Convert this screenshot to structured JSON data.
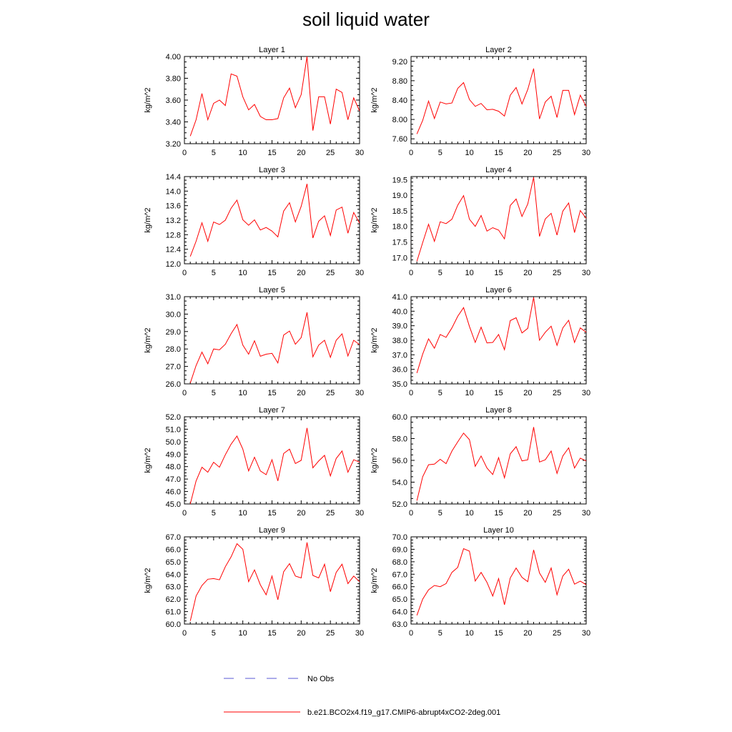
{
  "title": "soil liquid water",
  "legend": [
    {
      "label": "No Obs",
      "color": "#5a5ad6",
      "style": "dashed"
    },
    {
      "label": "b.e21.BCO2x4.f19_g17.CMIP6-abrupt4xCO2-2deg.001",
      "color": "#ff0000",
      "style": "solid"
    }
  ],
  "chart_data": [
    {
      "type": "line",
      "title": "Layer 1",
      "ylabel": "kg/m^2",
      "xlim": [
        0,
        30
      ],
      "ylim": [
        3.2,
        4.0
      ],
      "xticks": [
        0,
        5,
        10,
        15,
        20,
        25,
        30
      ],
      "yticks": [
        3.2,
        3.4,
        3.6,
        3.8,
        4.0
      ],
      "ytick_labels": [
        "3.20",
        "3.40",
        "3.60",
        "3.80",
        "4.00"
      ],
      "x": [
        1,
        2,
        3,
        4,
        5,
        6,
        7,
        8,
        9,
        10,
        11,
        12,
        13,
        14,
        15,
        16,
        17,
        18,
        19,
        20,
        21,
        22,
        23,
        24,
        25,
        26,
        27,
        28,
        29,
        30
      ],
      "series": [
        {
          "color": "#ff0000",
          "values": [
            3.27,
            3.42,
            3.66,
            3.42,
            3.57,
            3.6,
            3.55,
            3.84,
            3.82,
            3.63,
            3.51,
            3.56,
            3.45,
            3.42,
            3.42,
            3.43,
            3.62,
            3.71,
            3.53,
            3.65,
            4.0,
            3.32,
            3.63,
            3.63,
            3.38,
            3.7,
            3.67,
            3.42,
            3.62,
            3.5
          ]
        }
      ]
    },
    {
      "type": "line",
      "title": "Layer 2",
      "ylabel": "kg/m^2",
      "xlim": [
        0,
        30
      ],
      "ylim": [
        7.5,
        9.3
      ],
      "xticks": [
        0,
        5,
        10,
        15,
        20,
        25,
        30
      ],
      "yticks": [
        7.6,
        8.0,
        8.4,
        8.8,
        9.2
      ],
      "ytick_labels": [
        "7.60",
        "8.00",
        "8.40",
        "8.80",
        "9.20"
      ],
      "x": [
        1,
        2,
        3,
        4,
        5,
        6,
        7,
        8,
        9,
        10,
        11,
        12,
        13,
        14,
        15,
        16,
        17,
        18,
        19,
        20,
        21,
        22,
        23,
        24,
        25,
        26,
        27,
        28,
        29,
        30
      ],
      "series": [
        {
          "color": "#ff0000",
          "values": [
            7.7,
            7.98,
            8.38,
            8.02,
            8.36,
            8.32,
            8.34,
            8.64,
            8.76,
            8.41,
            8.27,
            8.33,
            8.2,
            8.21,
            8.17,
            8.07,
            8.5,
            8.66,
            8.32,
            8.62,
            9.05,
            8.01,
            8.36,
            8.48,
            8.04,
            8.6,
            8.6,
            8.1,
            8.5,
            8.27
          ]
        }
      ]
    },
    {
      "type": "line",
      "title": "Layer 3",
      "ylabel": "kg/m^2",
      "xlim": [
        0,
        30
      ],
      "ylim": [
        12.0,
        14.4
      ],
      "xticks": [
        0,
        5,
        10,
        15,
        20,
        25,
        30
      ],
      "yticks": [
        12.0,
        12.4,
        12.8,
        13.2,
        13.6,
        14.0,
        14.4
      ],
      "ytick_labels": [
        "12.0",
        "12.4",
        "12.8",
        "13.2",
        "13.6",
        "14.0",
        "14.4"
      ],
      "x": [
        1,
        2,
        3,
        4,
        5,
        6,
        7,
        8,
        9,
        10,
        11,
        12,
        13,
        14,
        15,
        16,
        17,
        18,
        19,
        20,
        21,
        22,
        23,
        24,
        25,
        26,
        27,
        28,
        29,
        30
      ],
      "series": [
        {
          "color": "#ff0000",
          "values": [
            12.2,
            12.62,
            13.13,
            12.62,
            13.15,
            13.08,
            13.2,
            13.53,
            13.75,
            13.21,
            13.06,
            13.21,
            12.93,
            13.0,
            12.9,
            12.74,
            13.45,
            13.68,
            13.15,
            13.58,
            14.2,
            12.71,
            13.17,
            13.32,
            12.78,
            13.48,
            13.56,
            12.84,
            13.41,
            13.12
          ]
        }
      ]
    },
    {
      "type": "line",
      "title": "Layer 4",
      "ylabel": "kg/m^2",
      "xlim": [
        0,
        30
      ],
      "ylim": [
        16.8,
        19.6
      ],
      "xticks": [
        0,
        5,
        10,
        15,
        20,
        25,
        30
      ],
      "yticks": [
        17.0,
        17.5,
        18.0,
        18.5,
        19.0,
        19.5
      ],
      "ytick_labels": [
        "17.0",
        "17.5",
        "18.0",
        "18.5",
        "19.0",
        "19.5"
      ],
      "x": [
        1,
        2,
        3,
        4,
        5,
        6,
        7,
        8,
        9,
        10,
        11,
        12,
        13,
        14,
        15,
        16,
        17,
        18,
        19,
        20,
        21,
        22,
        23,
        24,
        25,
        26,
        27,
        28,
        29,
        30
      ],
      "series": [
        {
          "color": "#ff0000",
          "values": [
            16.88,
            17.48,
            18.07,
            17.52,
            18.15,
            18.09,
            18.23,
            18.68,
            18.99,
            18.23,
            18.0,
            18.35,
            17.85,
            17.96,
            17.88,
            17.6,
            18.67,
            18.88,
            18.32,
            18.72,
            19.58,
            17.68,
            18.24,
            18.42,
            17.72,
            18.49,
            18.75,
            17.8,
            18.51,
            18.26
          ]
        }
      ]
    },
    {
      "type": "line",
      "title": "Layer 5",
      "ylabel": "kg/m^2",
      "xlim": [
        0,
        30
      ],
      "ylim": [
        26.0,
        31.0
      ],
      "xticks": [
        0,
        5,
        10,
        15,
        20,
        25,
        30
      ],
      "yticks": [
        26.0,
        27.0,
        28.0,
        29.0,
        30.0,
        31.0
      ],
      "ytick_labels": [
        "26.0",
        "27.0",
        "28.0",
        "29.0",
        "30.0",
        "31.0"
      ],
      "x": [
        1,
        2,
        3,
        4,
        5,
        6,
        7,
        8,
        9,
        10,
        11,
        12,
        13,
        14,
        15,
        16,
        17,
        18,
        19,
        20,
        21,
        22,
        23,
        24,
        25,
        26,
        27,
        28,
        29,
        30
      ],
      "series": [
        {
          "color": "#ff0000",
          "values": [
            26.05,
            27.05,
            27.82,
            27.15,
            28.0,
            27.95,
            28.27,
            28.88,
            29.4,
            28.22,
            27.7,
            28.47,
            27.58,
            27.7,
            27.75,
            27.2,
            28.8,
            29.03,
            28.27,
            28.65,
            30.1,
            27.55,
            28.22,
            28.5,
            27.52,
            28.5,
            28.87,
            27.6,
            28.5,
            28.25
          ]
        }
      ]
    },
    {
      "type": "line",
      "title": "Layer 6",
      "ylabel": "kg/m^2",
      "xlim": [
        0,
        30
      ],
      "ylim": [
        35.0,
        41.0
      ],
      "xticks": [
        0,
        5,
        10,
        15,
        20,
        25,
        30
      ],
      "yticks": [
        35.0,
        36.0,
        37.0,
        38.0,
        39.0,
        40.0,
        41.0
      ],
      "ytick_labels": [
        "35.0",
        "36.0",
        "37.0",
        "38.0",
        "39.0",
        "40.0",
        "41.0"
      ],
      "x": [
        1,
        2,
        3,
        4,
        5,
        6,
        7,
        8,
        9,
        10,
        11,
        12,
        13,
        14,
        15,
        16,
        17,
        18,
        19,
        20,
        21,
        22,
        23,
        24,
        25,
        26,
        27,
        28,
        29,
        30
      ],
      "series": [
        {
          "color": "#ff0000",
          "values": [
            35.75,
            37.05,
            38.1,
            37.45,
            38.4,
            38.2,
            38.85,
            39.65,
            40.25,
            38.95,
            37.85,
            38.9,
            37.82,
            37.85,
            38.4,
            37.35,
            39.35,
            39.55,
            38.5,
            38.82,
            40.95,
            38.0,
            38.55,
            38.97,
            37.65,
            38.85,
            39.37,
            37.85,
            38.85,
            38.55
          ]
        }
      ]
    },
    {
      "type": "line",
      "title": "Layer 7",
      "ylabel": "kg/m^2",
      "xlim": [
        0,
        30
      ],
      "ylim": [
        45.0,
        52.0
      ],
      "xticks": [
        0,
        5,
        10,
        15,
        20,
        25,
        30
      ],
      "yticks": [
        45.0,
        46.0,
        47.0,
        48.0,
        49.0,
        50.0,
        51.0,
        52.0
      ],
      "ytick_labels": [
        "45.0",
        "46.0",
        "47.0",
        "48.0",
        "49.0",
        "50.0",
        "51.0",
        "52.0"
      ],
      "x": [
        1,
        2,
        3,
        4,
        5,
        6,
        7,
        8,
        9,
        10,
        11,
        12,
        13,
        14,
        15,
        16,
        17,
        18,
        19,
        20,
        21,
        22,
        23,
        24,
        25,
        26,
        27,
        28,
        29,
        30
      ],
      "series": [
        {
          "color": "#ff0000",
          "values": [
            45.0,
            46.85,
            47.95,
            47.55,
            48.35,
            47.95,
            48.95,
            49.8,
            50.45,
            49.4,
            47.65,
            48.75,
            47.65,
            47.35,
            48.55,
            46.85,
            49.05,
            49.4,
            48.25,
            48.5,
            51.1,
            47.9,
            48.45,
            48.9,
            47.25,
            48.65,
            49.25,
            47.55,
            48.55,
            48.35
          ]
        }
      ]
    },
    {
      "type": "line",
      "title": "Layer 8",
      "ylabel": "kg/m^2",
      "xlim": [
        0,
        30
      ],
      "ylim": [
        52.0,
        60.0
      ],
      "xticks": [
        0,
        5,
        10,
        15,
        20,
        25,
        30
      ],
      "yticks": [
        52.0,
        54.0,
        56.0,
        58.0,
        60.0
      ],
      "ytick_labels": [
        "52.0",
        "54.0",
        "56.0",
        "58.0",
        "60.0"
      ],
      "x": [
        1,
        2,
        3,
        4,
        5,
        6,
        7,
        8,
        9,
        10,
        11,
        12,
        13,
        14,
        15,
        16,
        17,
        18,
        19,
        20,
        21,
        22,
        23,
        24,
        25,
        26,
        27,
        28,
        29,
        30
      ],
      "series": [
        {
          "color": "#ff0000",
          "values": [
            52.3,
            54.5,
            55.6,
            55.65,
            56.1,
            55.7,
            56.85,
            57.7,
            58.5,
            57.9,
            55.45,
            56.4,
            55.3,
            54.7,
            56.25,
            54.4,
            56.6,
            57.25,
            55.95,
            56.05,
            59.05,
            55.85,
            56.05,
            56.85,
            54.8,
            56.4,
            57.15,
            55.3,
            56.2,
            55.95
          ]
        }
      ]
    },
    {
      "type": "line",
      "title": "Layer 9",
      "ylabel": "kg/m^2",
      "xlim": [
        0,
        30
      ],
      "ylim": [
        60.0,
        67.0
      ],
      "xticks": [
        0,
        5,
        10,
        15,
        20,
        25,
        30
      ],
      "yticks": [
        60.0,
        61.0,
        62.0,
        63.0,
        64.0,
        65.0,
        66.0,
        67.0
      ],
      "ytick_labels": [
        "60.0",
        "61.0",
        "62.0",
        "63.0",
        "64.0",
        "65.0",
        "66.0",
        "67.0"
      ],
      "x": [
        1,
        2,
        3,
        4,
        5,
        6,
        7,
        8,
        9,
        10,
        11,
        12,
        13,
        14,
        15,
        16,
        17,
        18,
        19,
        20,
        21,
        22,
        23,
        24,
        25,
        26,
        27,
        28,
        29,
        30
      ],
      "series": [
        {
          "color": "#ff0000",
          "values": [
            60.25,
            62.25,
            63.1,
            63.6,
            63.65,
            63.55,
            64.6,
            65.4,
            66.45,
            66.0,
            63.4,
            64.35,
            63.15,
            62.35,
            63.85,
            61.95,
            64.2,
            64.85,
            63.85,
            63.7,
            66.55,
            63.9,
            63.7,
            64.8,
            62.6,
            64.15,
            64.8,
            63.25,
            63.85,
            63.4
          ]
        }
      ]
    },
    {
      "type": "line",
      "title": "Layer 10",
      "ylabel": "kg/m^2",
      "xlim": [
        0,
        30
      ],
      "ylim": [
        63.0,
        70.0
      ],
      "xticks": [
        0,
        5,
        10,
        15,
        20,
        25,
        30
      ],
      "yticks": [
        63.0,
        64.0,
        65.0,
        66.0,
        67.0,
        68.0,
        69.0,
        70.0
      ],
      "ytick_labels": [
        "63.0",
        "64.0",
        "65.0",
        "66.0",
        "67.0",
        "68.0",
        "69.0",
        "70.0"
      ],
      "x": [
        1,
        2,
        3,
        4,
        5,
        6,
        7,
        8,
        9,
        10,
        11,
        12,
        13,
        14,
        15,
        16,
        17,
        18,
        19,
        20,
        21,
        22,
        23,
        24,
        25,
        26,
        27,
        28,
        29,
        30
      ],
      "series": [
        {
          "color": "#ff0000",
          "values": [
            63.7,
            65.0,
            65.75,
            66.1,
            66.0,
            66.25,
            67.15,
            67.55,
            69.05,
            68.85,
            66.45,
            67.15,
            66.35,
            65.25,
            66.65,
            64.55,
            66.7,
            67.5,
            66.75,
            66.4,
            68.95,
            67.1,
            66.35,
            67.5,
            65.35,
            66.85,
            67.4,
            66.2,
            66.45,
            66.15
          ]
        }
      ]
    }
  ]
}
